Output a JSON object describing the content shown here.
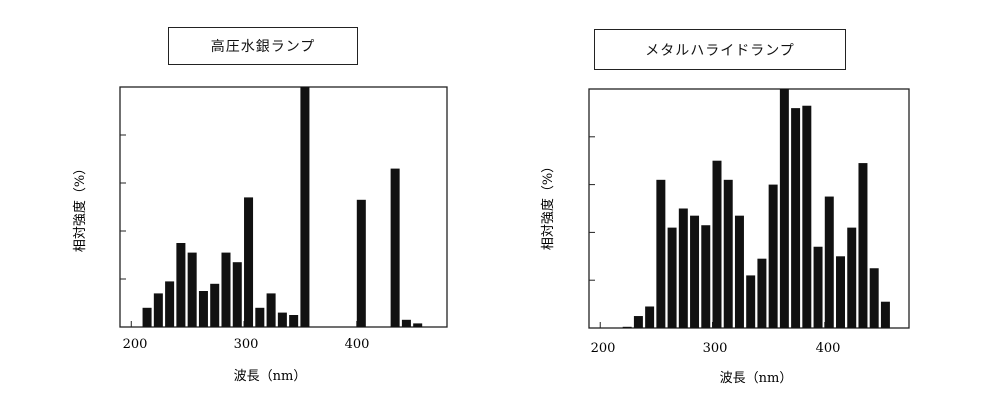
{
  "charts": [
    {
      "title": "高圧水銀ランプ",
      "xlabel": "波長（nm）",
      "ylabel": "相対強度（%）",
      "xticks": [
        "200",
        "300",
        "400"
      ]
    },
    {
      "title": "メタルハライドランプ",
      "xlabel": "波長（nm）",
      "ylabel": "相対強度（%）",
      "xticks": [
        "200",
        "300",
        "400"
      ]
    }
  ],
  "chart_data": [
    {
      "type": "bar",
      "title": "高圧水銀ランプ",
      "xlabel": "波長（nm）",
      "ylabel": "相対強度（%）",
      "xlim": [
        190,
        480
      ],
      "ylim": [
        0,
        100
      ],
      "xticks": [
        200,
        300,
        400
      ],
      "yticks": [
        20,
        40,
        60,
        80,
        100
      ],
      "grid": false,
      "bar_width_nm": 8,
      "x": [
        214,
        224,
        234,
        244,
        254,
        264,
        274,
        284,
        294,
        304,
        314,
        324,
        334,
        344,
        354,
        404,
        434,
        444,
        454
      ],
      "values": [
        8,
        14,
        19,
        35,
        31,
        15,
        18,
        31,
        27,
        54,
        8,
        14,
        6,
        5,
        100,
        53,
        66,
        3,
        1.5
      ]
    },
    {
      "type": "bar",
      "title": "メタルハライドランプ",
      "xlabel": "波長（nm）",
      "ylabel": "相対強度（%）",
      "xlim": [
        190,
        475
      ],
      "ylim": [
        0,
        100
      ],
      "xticks": [
        200,
        300,
        400
      ],
      "yticks": [
        20,
        40,
        60,
        80,
        100
      ],
      "grid": false,
      "bar_width_nm": 8,
      "x": [
        224,
        234,
        244,
        254,
        264,
        274,
        284,
        294,
        304,
        314,
        324,
        334,
        344,
        354,
        364,
        374,
        384,
        394,
        404,
        414,
        424,
        434,
        444,
        454
      ],
      "values": [
        0.5,
        5,
        9,
        62,
        42,
        50,
        47,
        43,
        70,
        62,
        47,
        22,
        29,
        60,
        100,
        92,
        93,
        34,
        55,
        30,
        42,
        69,
        25,
        11
      ]
    }
  ]
}
